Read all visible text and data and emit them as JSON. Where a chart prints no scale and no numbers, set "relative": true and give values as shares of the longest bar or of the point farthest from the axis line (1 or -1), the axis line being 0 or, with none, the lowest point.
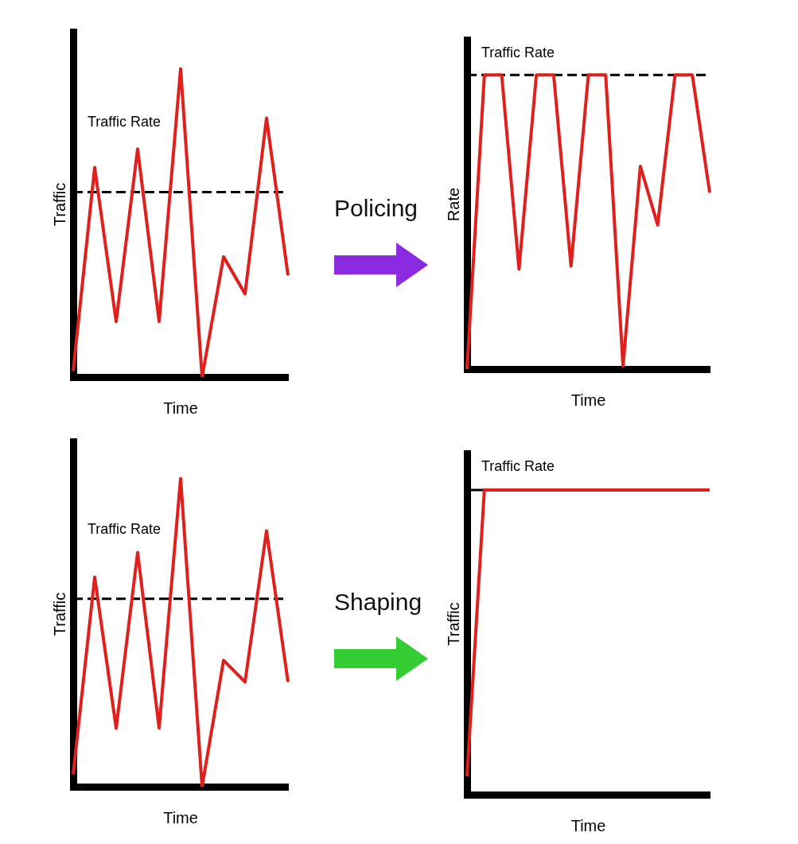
{
  "chart_data": [
    {
      "type": "line",
      "ylabel": "Traffic",
      "xlabel": "Time",
      "relative": true,
      "tick_labels": false,
      "categories": [
        null,
        null,
        null,
        null,
        null,
        null,
        null,
        null,
        null,
        null,
        null
      ],
      "series": [
        {
          "color": "#e0201c",
          "values": [
            0.02,
            0.68,
            0.18,
            0.74,
            0.18,
            1,
            0,
            0.39,
            0.27,
            0.84,
            0.33
          ]
        }
      ],
      "ref_lines": [
        {
          "axis": "y",
          "value": 0.6,
          "label": "Traffic Rate",
          "line_style": "dashed"
        }
      ]
    },
    {
      "type": "line",
      "ylabel": "Rate",
      "xlabel": "Time",
      "relative": true,
      "tick_labels": false,
      "categories": [
        null,
        null,
        null,
        null,
        null,
        null,
        null,
        null,
        null,
        null,
        null,
        null,
        null,
        null,
        null
      ],
      "series": [
        {
          "color": "#e0201c",
          "values": [
            0,
            1,
            1,
            0.34,
            1,
            1,
            0.35,
            1,
            1,
            0.01,
            0.69,
            0.49,
            1,
            1,
            0.6
          ]
        }
      ],
      "ref_lines": [
        {
          "axis": "y",
          "value": 1,
          "label": "Traffic Rate",
          "line_style": "dashed"
        }
      ],
      "annotations": [
        "Policing"
      ]
    },
    {
      "type": "line",
      "ylabel": "Traffic",
      "xlabel": "Time",
      "relative": true,
      "tick_labels": false,
      "categories": [
        null,
        null,
        null,
        null,
        null,
        null,
        null,
        null,
        null,
        null,
        null
      ],
      "series": [
        {
          "color": "#e0201c",
          "values": [
            0.04,
            0.68,
            0.19,
            0.76,
            0.19,
            1,
            0,
            0.41,
            0.34,
            0.83,
            0.34
          ]
        }
      ],
      "ref_lines": [
        {
          "axis": "y",
          "value": 0.61,
          "label": "Traffic Rate",
          "line_style": "dashed"
        }
      ]
    },
    {
      "type": "line",
      "ylabel": "Traffic",
      "xlabel": "Time",
      "relative": true,
      "tick_labels": false,
      "categories": [
        null,
        null,
        null,
        null,
        null,
        null,
        null,
        null,
        null,
        null,
        null,
        null,
        null,
        null,
        null
      ],
      "series": [
        {
          "color": "#e0201c",
          "values": [
            0.06,
            1,
            1,
            1,
            1,
            1,
            1,
            1,
            1,
            1,
            1,
            1,
            1,
            1,
            1
          ]
        }
      ],
      "ref_lines": [
        {
          "axis": "y",
          "value": 1,
          "label": "Traffic Rate",
          "line_style": "solid"
        }
      ],
      "annotations": [
        "Shaping"
      ]
    }
  ]
}
